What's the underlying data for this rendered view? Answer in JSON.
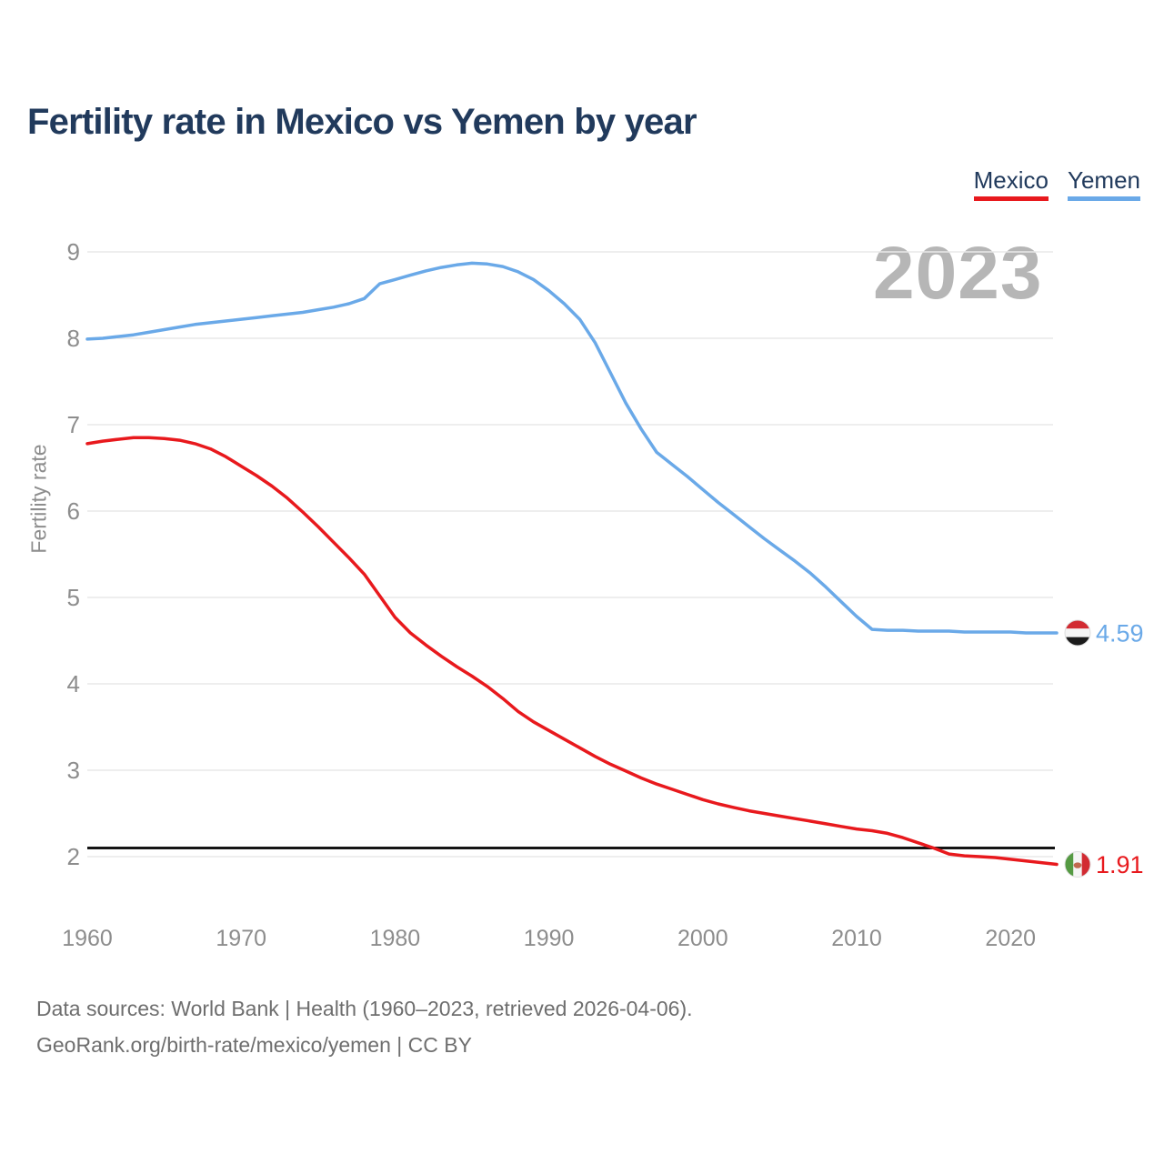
{
  "header": {
    "title": "Fertility rate in Mexico vs Yemen by year"
  },
  "watermark": "2023",
  "axes": {
    "y_label": "Fertility rate",
    "y_ticks": [
      9,
      8,
      7,
      6,
      5,
      4,
      3,
      2
    ],
    "x_ticks": [
      1960,
      1970,
      1980,
      1990,
      2000,
      2010,
      2020
    ]
  },
  "footer": {
    "line1": "Data sources: World Bank | Health (1960–2023, retrieved 2026-04-06).",
    "line2": "GeoRank.org/birth-rate/mexico/yemen | CC BY"
  },
  "colors": {
    "title": "#213a5c",
    "tick": "#8d8d8d",
    "watermark": "#b6b6b6",
    "footer": "#6e6e6e",
    "gridline": "#e8e8e8",
    "reference": "#141414",
    "flag_yemen_red": "#d22b32",
    "flag_yemen_white": "#f5f5f5",
    "flag_yemen_black": "#1b1b1b",
    "flag_mexico_green": "#559a43",
    "flag_mexico_white": "#f5f5f5",
    "flag_mexico_red": "#d22b32",
    "flag_mexico_emblem": "#c1694f",
    "flag_border": "#dedede"
  },
  "chart_data": {
    "type": "line",
    "title": "Fertility rate in Mexico vs Yemen by year",
    "xlabel": "",
    "ylabel": "Fertility rate",
    "x_start": 1960,
    "x_end": 2023,
    "x_step": 1,
    "ylim": [
      2,
      9
    ],
    "grid": true,
    "legend_position": "top-right",
    "reference_line": {
      "value": 2.1
    },
    "series": [
      {
        "name": "Mexico",
        "color": "#e8191d",
        "end_label": "1.91",
        "flag": "mexico",
        "values": [
          6.78,
          6.81,
          6.83,
          6.85,
          6.85,
          6.84,
          6.82,
          6.78,
          6.72,
          6.63,
          6.52,
          6.41,
          6.29,
          6.15,
          5.99,
          5.82,
          5.64,
          5.46,
          5.27,
          5.02,
          4.77,
          4.59,
          4.45,
          4.32,
          4.2,
          4.09,
          3.97,
          3.83,
          3.68,
          3.56,
          3.46,
          3.36,
          3.26,
          3.16,
          3.07,
          2.99,
          2.91,
          2.84,
          2.78,
          2.72,
          2.66,
          2.61,
          2.57,
          2.53,
          2.5,
          2.47,
          2.44,
          2.41,
          2.38,
          2.35,
          2.32,
          2.3,
          2.27,
          2.22,
          2.16,
          2.1,
          2.03,
          2.01,
          2.0,
          1.99,
          1.97,
          1.95,
          1.93,
          1.91
        ]
      },
      {
        "name": "Yemen",
        "color": "#6aa9e8",
        "end_label": "4.59",
        "flag": "yemen",
        "values": [
          7.99,
          8.0,
          8.02,
          8.04,
          8.07,
          8.1,
          8.13,
          8.16,
          8.18,
          8.2,
          8.22,
          8.24,
          8.26,
          8.28,
          8.3,
          8.33,
          8.36,
          8.4,
          8.46,
          8.63,
          8.68,
          8.73,
          8.78,
          8.82,
          8.85,
          8.87,
          8.86,
          8.83,
          8.77,
          8.68,
          8.55,
          8.4,
          8.22,
          7.95,
          7.6,
          7.25,
          6.95,
          6.68,
          6.54,
          6.4,
          6.25,
          6.1,
          5.96,
          5.82,
          5.68,
          5.55,
          5.42,
          5.28,
          5.12,
          4.95,
          4.78,
          4.63,
          4.62,
          4.62,
          4.61,
          4.61,
          4.61,
          4.6,
          4.6,
          4.6,
          4.6,
          4.59,
          4.59,
          4.59
        ]
      }
    ]
  }
}
